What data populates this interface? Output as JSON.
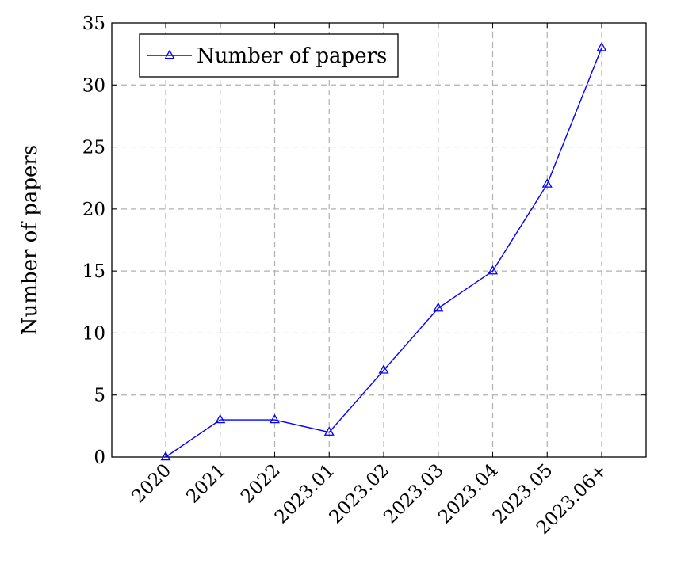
{
  "chart_data": {
    "type": "line",
    "title": "",
    "xlabel": "",
    "ylabel": "Number of papers",
    "categories": [
      "2020",
      "2021",
      "2022",
      "2023.01",
      "2023.02",
      "2023.03",
      "2023.04",
      "2023.05",
      "2023.06+"
    ],
    "series": [
      {
        "name": "Number of papers",
        "values": [
          0,
          3,
          3,
          2,
          7,
          12,
          15,
          22,
          33
        ],
        "color": "#0000ff",
        "marker": "triangle"
      }
    ],
    "ylim": [
      0,
      35
    ],
    "yticks": [
      0,
      5,
      10,
      15,
      20,
      25,
      30,
      35
    ],
    "grid": true,
    "grid_style": "dashed",
    "legend_position": "top-left"
  }
}
